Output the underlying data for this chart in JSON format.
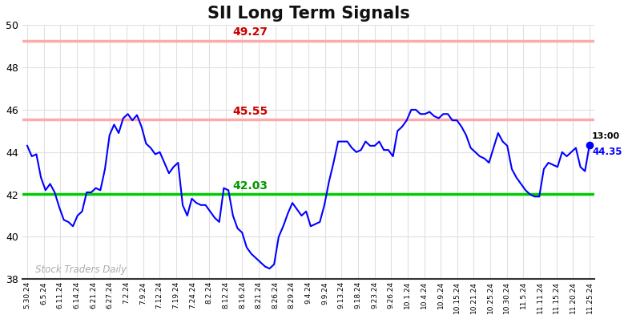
{
  "title": "SII Long Term Signals",
  "watermark": "Stock Traders Daily",
  "hline_green": 42.03,
  "hline_red1": 45.55,
  "hline_red2": 49.27,
  "hline_green_color": "#00cc00",
  "hline_red_color": "#ffaaaa",
  "label_green_color": "#009900",
  "label_red_color": "#cc0000",
  "last_label": "13:00",
  "last_value": 44.35,
  "line_color": "blue",
  "dot_color": "blue",
  "ylim": [
    38,
    50
  ],
  "yticks": [
    38,
    40,
    42,
    44,
    46,
    48,
    50
  ],
  "x_labels": [
    "5.30.24",
    "6.5.24",
    "6.11.24",
    "6.14.24",
    "6.21.24",
    "6.27.24",
    "7.2.24",
    "7.9.24",
    "7.12.24",
    "7.19.24",
    "7.24.24",
    "8.2.24",
    "8.12.24",
    "8.16.24",
    "8.21.24",
    "8.26.24",
    "8.29.24",
    "9.4.24",
    "9.9.24",
    "9.13.24",
    "9.18.24",
    "9.23.24",
    "9.26.24",
    "10.1.24",
    "10.4.24",
    "10.9.24",
    "10.15.24",
    "10.21.24",
    "10.25.24",
    "10.30.24",
    "11.5.24",
    "11.11.24",
    "11.15.24",
    "11.20.24",
    "11.25.24"
  ],
  "y_values": [
    44.3,
    43.8,
    43.9,
    42.8,
    42.2,
    42.5,
    42.1,
    41.4,
    40.8,
    40.7,
    40.5,
    41.0,
    41.2,
    42.1,
    42.1,
    42.3,
    42.2,
    43.2,
    44.8,
    45.3,
    44.9,
    45.6,
    45.8,
    45.5,
    45.75,
    45.2,
    44.4,
    44.2,
    43.9,
    44.0,
    43.5,
    43.0,
    43.3,
    43.5,
    41.5,
    41.0,
    41.8,
    41.6,
    41.5,
    41.5,
    41.2,
    40.9,
    40.7,
    42.3,
    42.2,
    41.0,
    40.4,
    40.2,
    39.5,
    39.2,
    39.0,
    38.8,
    38.6,
    38.5,
    38.7,
    40.0,
    40.5,
    41.1,
    41.6,
    41.3,
    41.0,
    41.2,
    40.5,
    40.6,
    40.7,
    41.5,
    42.6,
    43.5,
    44.5,
    44.5,
    44.5,
    44.2,
    44.0,
    44.1,
    44.5,
    44.3,
    44.3,
    44.5,
    44.1,
    44.1,
    43.8,
    45.0,
    45.2,
    45.5,
    46.0,
    46.0,
    45.8,
    45.8,
    45.9,
    45.7,
    45.6,
    45.8,
    45.8,
    45.5,
    45.5,
    45.2,
    44.8,
    44.2,
    44.0,
    43.8,
    43.7,
    43.5,
    44.2,
    44.9,
    44.5,
    44.3,
    43.2,
    42.8,
    42.5,
    42.2,
    42.0,
    41.9,
    41.9,
    43.2,
    43.5,
    43.4,
    43.3,
    44.0,
    43.8,
    44.0,
    44.2,
    43.3,
    43.1,
    44.35
  ],
  "background_color": "#ffffff",
  "grid_color": "#e0e0e0"
}
